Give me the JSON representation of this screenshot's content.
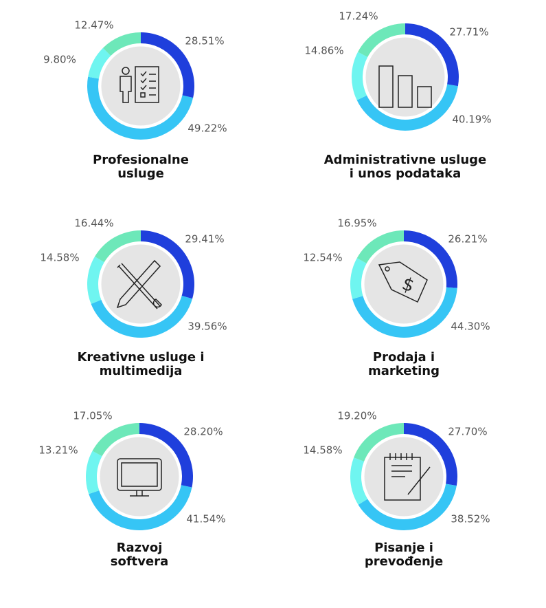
{
  "chart_data": [
    {
      "type": "pie",
      "title": [
        "Profesionalne",
        "usluge"
      ],
      "values": [
        28.51,
        49.22,
        9.8,
        12.47
      ],
      "value_labels": [
        "28.51%",
        "49.22%",
        "9.80%",
        "12.47%"
      ],
      "colors": [
        "#1f3fdc",
        "#36c5f5",
        "#6ff5f0",
        "#6de8b9"
      ]
    },
    {
      "type": "pie",
      "title": [
        "Administrativne usluge",
        "i unos podataka"
      ],
      "values": [
        27.71,
        40.19,
        14.86,
        17.24
      ],
      "value_labels": [
        "27.71%",
        "40.19%",
        "14.86%",
        "17.24%"
      ],
      "colors": [
        "#1f3fdc",
        "#36c5f5",
        "#6ff5f0",
        "#6de8b9"
      ]
    },
    {
      "type": "pie",
      "title": [
        "Kreativne usluge i",
        "multimedija"
      ],
      "values": [
        29.41,
        39.56,
        14.58,
        16.44
      ],
      "value_labels": [
        "29.41%",
        "39.56%",
        "14.58%",
        "16.44%"
      ],
      "colors": [
        "#1f3fdc",
        "#36c5f5",
        "#6ff5f0",
        "#6de8b9"
      ]
    },
    {
      "type": "pie",
      "title": [
        "Prodaja i",
        "marketing"
      ],
      "values": [
        26.21,
        44.3,
        12.54,
        16.95
      ],
      "value_labels": [
        "26.21%",
        "44.30%",
        "12.54%",
        "16.95%"
      ],
      "colors": [
        "#1f3fdc",
        "#36c5f5",
        "#6ff5f0",
        "#6de8b9"
      ]
    },
    {
      "type": "pie",
      "title": [
        "Razvoj",
        "softvera"
      ],
      "values": [
        28.2,
        41.54,
        13.21,
        17.05
      ],
      "value_labels": [
        "28.20%",
        "41.54%",
        "13.21%",
        "17.05%"
      ],
      "colors": [
        "#1f3fdc",
        "#36c5f5",
        "#6ff5f0",
        "#6de8b9"
      ]
    },
    {
      "type": "pie",
      "title": [
        "Pisanje i",
        "prevođenje"
      ],
      "values": [
        27.7,
        38.52,
        14.58,
        19.2
      ],
      "value_labels": [
        "27.70%",
        "38.52%",
        "14.58%",
        "19.20%"
      ],
      "colors": [
        "#1f3fdc",
        "#36c5f5",
        "#6ff5f0",
        "#6de8b9"
      ]
    }
  ]
}
